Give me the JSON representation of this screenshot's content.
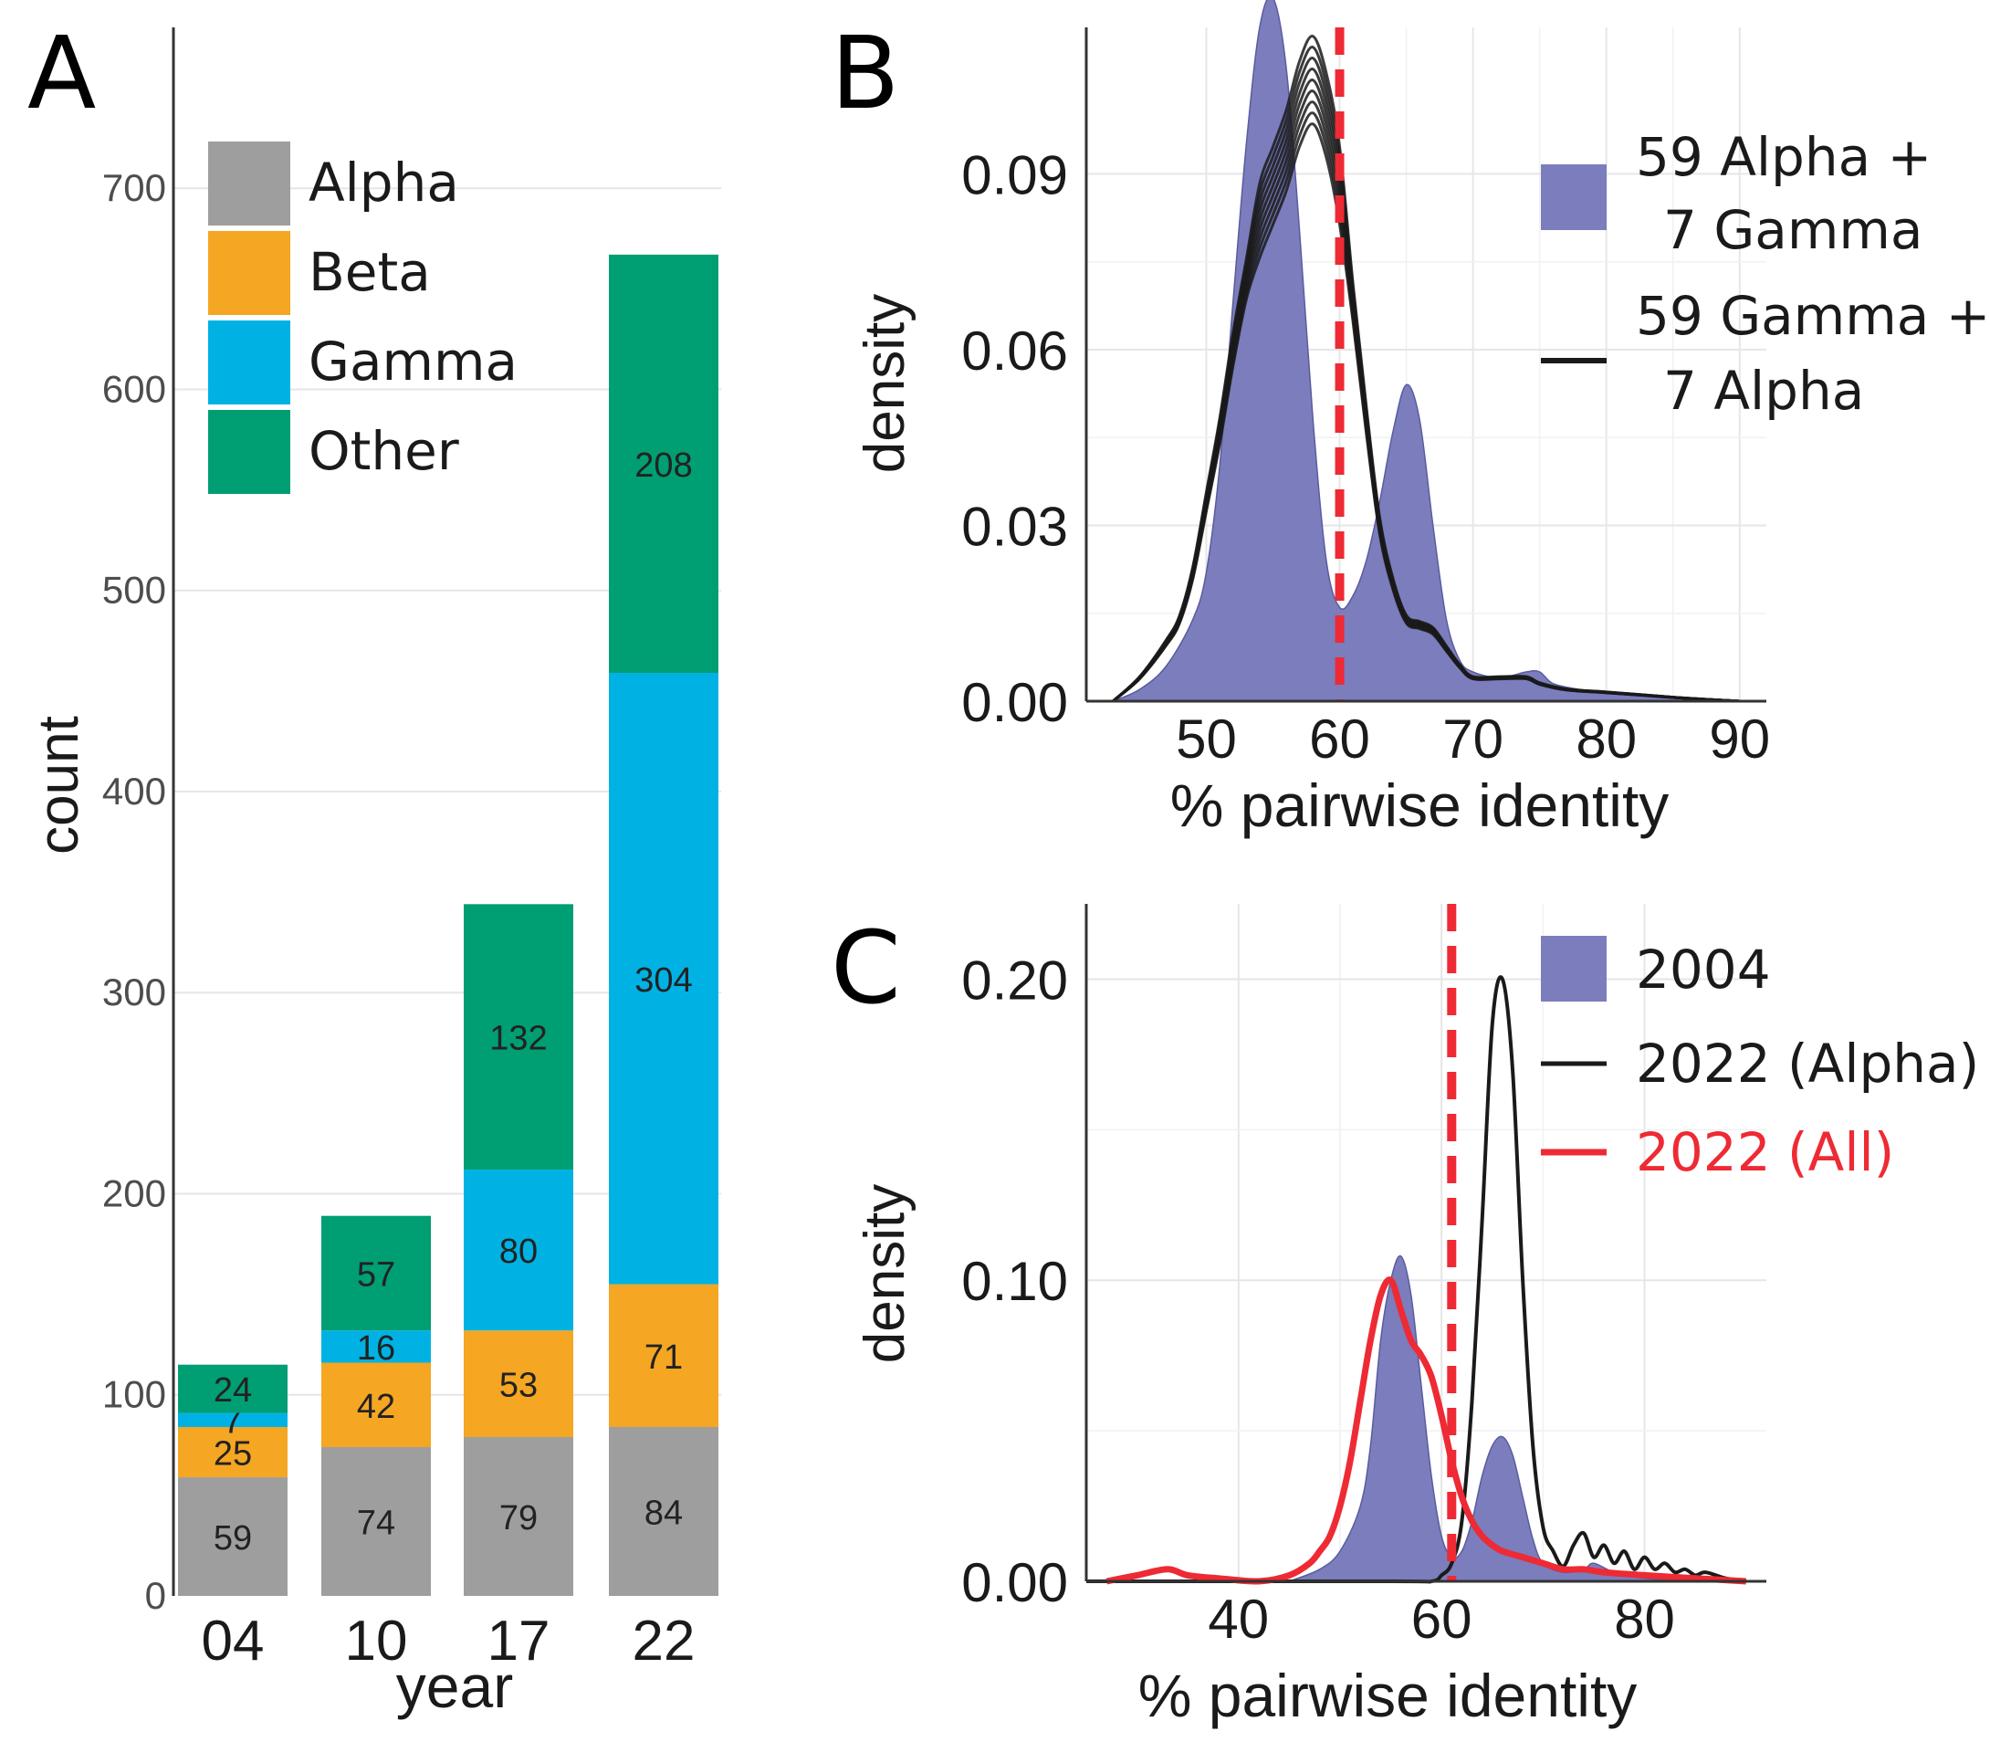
{
  "colors": {
    "alpha": "#9e9e9e",
    "beta": "#f5a623",
    "gamma": "#00b2e3",
    "other": "#009e73",
    "fill_density": "#7b7dbd",
    "black": "#1a1a1a",
    "red": "#ee2a34"
  },
  "chart_data": [
    {
      "panel": "A",
      "type": "bar",
      "stacked": true,
      "categories": [
        "04",
        "10",
        "17",
        "22"
      ],
      "series": [
        {
          "name": "Alpha",
          "color_key": "alpha",
          "values": [
            59,
            74,
            79,
            84
          ]
        },
        {
          "name": "Beta",
          "color_key": "beta",
          "values": [
            25,
            42,
            53,
            71
          ]
        },
        {
          "name": "Gamma",
          "color_key": "gamma",
          "values": [
            7,
            16,
            80,
            304
          ]
        },
        {
          "name": "Other",
          "color_key": "other",
          "values": [
            24,
            57,
            132,
            208
          ]
        }
      ],
      "xlabel": "year",
      "ylabel": "count",
      "ylim": [
        0,
        780
      ],
      "yticks": [
        "0",
        "100",
        "200",
        "300",
        "400",
        "500",
        "600",
        "700"
      ],
      "legend_position": "top-left"
    },
    {
      "panel": "B",
      "type": "area",
      "xlabel": "% pairwise identity",
      "ylabel": "density",
      "xlim": [
        41,
        92
      ],
      "ylim": [
        0,
        0.115
      ],
      "xticks": [
        "50",
        "60",
        "70",
        "80",
        "90"
      ],
      "yticks": [
        "0.00",
        "0.03",
        "0.06",
        "0.09"
      ],
      "threshold_x": 60,
      "series": [
        {
          "name": "59 Alpha + 7 Gamma",
          "kind": "filled",
          "x": [
            43,
            45,
            47,
            49,
            50,
            51,
            52,
            53,
            54,
            55,
            56,
            57,
            58,
            59,
            60,
            61,
            62,
            63,
            64,
            65,
            66,
            67,
            68,
            69,
            70,
            72,
            74,
            75,
            76,
            78,
            80,
            82,
            85,
            90
          ],
          "y": [
            0.0,
            0.002,
            0.006,
            0.014,
            0.022,
            0.04,
            0.068,
            0.095,
            0.115,
            0.12,
            0.108,
            0.08,
            0.048,
            0.024,
            0.016,
            0.018,
            0.024,
            0.034,
            0.046,
            0.054,
            0.048,
            0.03,
            0.014,
            0.007,
            0.005,
            0.004,
            0.005,
            0.005,
            0.003,
            0.002,
            0.0015,
            0.001,
            0.0005,
            0.0
          ]
        },
        {
          "name": "59 Gamma + 7 Alpha",
          "kind": "line",
          "x": [
            43,
            45,
            47,
            48,
            49,
            50,
            51,
            52,
            53,
            54,
            55,
            56,
            57,
            58,
            59,
            60,
            61,
            62,
            63,
            64,
            65,
            66,
            67,
            68,
            69,
            70,
            72,
            74,
            75,
            77,
            80,
            83,
            86,
            90
          ],
          "y": [
            0.0,
            0.004,
            0.01,
            0.014,
            0.022,
            0.034,
            0.046,
            0.06,
            0.072,
            0.082,
            0.088,
            0.094,
            0.102,
            0.106,
            0.1,
            0.088,
            0.068,
            0.048,
            0.03,
            0.02,
            0.014,
            0.013,
            0.012,
            0.009,
            0.006,
            0.004,
            0.004,
            0.004,
            0.003,
            0.002,
            0.0015,
            0.001,
            0.0005,
            0.0
          ]
        }
      ],
      "legend": [
        {
          "label": "59 Alpha +",
          "label2": "7 Gamma"
        },
        {
          "label": "59 Gamma +",
          "label2": "7 Alpha"
        }
      ],
      "legend_position": "top-right"
    },
    {
      "panel": "C",
      "type": "area",
      "xlabel": "% pairwise identity",
      "ylabel": "density",
      "xlim": [
        25,
        92
      ],
      "ylim": [
        0,
        0.225
      ],
      "xticks": [
        "40",
        "60",
        "80"
      ],
      "yticks": [
        "0.00",
        "0.10",
        "0.20"
      ],
      "threshold_x": 61,
      "series": [
        {
          "name": "2004",
          "kind": "filled",
          "x": [
            45,
            48,
            50,
            52,
            53,
            54,
            55,
            56,
            57,
            58,
            59,
            60,
            61,
            62,
            63,
            64,
            65,
            66,
            67,
            68,
            69,
            70,
            72,
            74,
            75,
            77,
            80,
            85
          ],
          "y": [
            0.0,
            0.004,
            0.01,
            0.025,
            0.045,
            0.08,
            0.1,
            0.108,
            0.095,
            0.065,
            0.035,
            0.015,
            0.008,
            0.01,
            0.02,
            0.035,
            0.045,
            0.048,
            0.042,
            0.028,
            0.014,
            0.006,
            0.003,
            0.004,
            0.006,
            0.003,
            0.001,
            0.0
          ]
        },
        {
          "name": "2022 (Alpha)",
          "kind": "line",
          "color_key": "black",
          "x": [
            25,
            55,
            59,
            60,
            61,
            62,
            63,
            64,
            65,
            66,
            67,
            68,
            69,
            70,
            71,
            72,
            73,
            74,
            75,
            76,
            77,
            78,
            79,
            80,
            81,
            82,
            83,
            84,
            85,
            86,
            88,
            90
          ],
          "y": [
            0.0,
            0.0,
            0.0,
            0.002,
            0.006,
            0.02,
            0.06,
            0.12,
            0.185,
            0.2,
            0.17,
            0.1,
            0.045,
            0.018,
            0.01,
            0.005,
            0.012,
            0.016,
            0.008,
            0.012,
            0.006,
            0.01,
            0.004,
            0.008,
            0.004,
            0.006,
            0.003,
            0.004,
            0.002,
            0.003,
            0.001,
            0.0
          ]
        },
        {
          "name": "2022 (All)",
          "kind": "line",
          "color_key": "red",
          "x": [
            27,
            30,
            33,
            35,
            38,
            42,
            45,
            47,
            48,
            49,
            50,
            51,
            52,
            53,
            54,
            55,
            56,
            57,
            58,
            59,
            60,
            61,
            62,
            63,
            64,
            65,
            66,
            68,
            70,
            72,
            74,
            76,
            80,
            85,
            90
          ],
          "y": [
            0.0,
            0.002,
            0.004,
            0.002,
            0.001,
            0.0,
            0.002,
            0.006,
            0.01,
            0.015,
            0.025,
            0.04,
            0.06,
            0.08,
            0.095,
            0.1,
            0.09,
            0.08,
            0.075,
            0.068,
            0.055,
            0.04,
            0.028,
            0.02,
            0.015,
            0.012,
            0.01,
            0.008,
            0.006,
            0.004,
            0.004,
            0.003,
            0.002,
            0.001,
            0.0
          ]
        }
      ],
      "legend": [
        {
          "label": "2004"
        },
        {
          "label": "2022 (Alpha)"
        },
        {
          "label": "2022 (All)"
        }
      ],
      "legend_position": "top-right"
    }
  ],
  "panel_labels": {
    "a": "A",
    "b": "B",
    "c": "C"
  }
}
